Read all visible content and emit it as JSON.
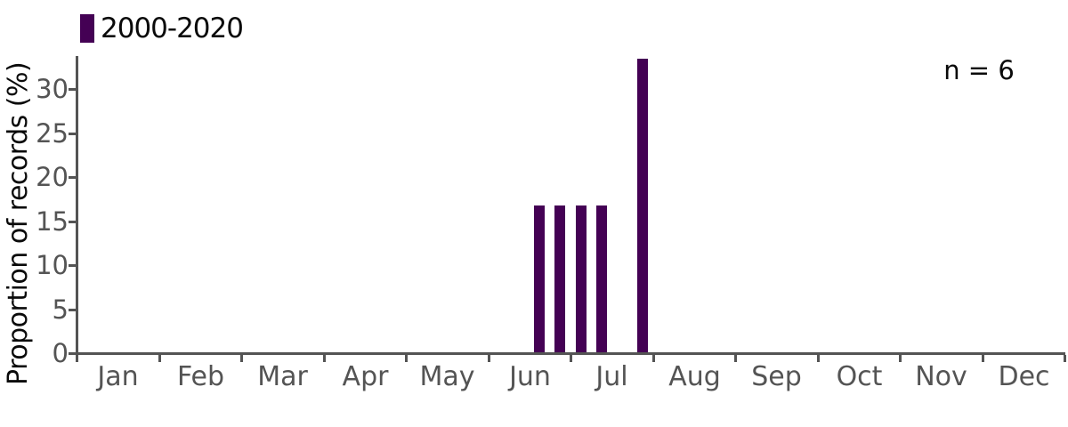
{
  "colors": {
    "bar": "#440154",
    "axis": "#545454",
    "tick_text": "#545454",
    "text": "#0a0a0a",
    "background": "#ffffff"
  },
  "legend": {
    "label": "2000-2020",
    "swatch_color": "#440154"
  },
  "annotation": "n = 6",
  "chart_data": {
    "type": "bar",
    "title": "",
    "xlabel": "",
    "ylabel": "Proportion of records (%)",
    "x_tick_labels": [
      "Jan",
      "Feb",
      "Mar",
      "Apr",
      "May",
      "Jun",
      "Jul",
      "Aug",
      "Sep",
      "Oct",
      "Nov",
      "Dec"
    ],
    "weeks_per_month": 4,
    "y_ticks": [
      0,
      5,
      10,
      15,
      20,
      25,
      30
    ],
    "ylim": [
      0,
      33.7
    ],
    "grid": false,
    "legend_position": "top-left",
    "annotation_position": "top-right",
    "sample_size": 6,
    "series": [
      {
        "name": "2000-2020",
        "color": "#440154",
        "points": [
          {
            "month": "Jun",
            "week": 3,
            "value": 16.7
          },
          {
            "month": "Jun",
            "week": 4,
            "value": 16.7
          },
          {
            "month": "Jul",
            "week": 1,
            "value": 16.7
          },
          {
            "month": "Jul",
            "week": 2,
            "value": 16.7
          },
          {
            "month": "Jul",
            "week": 4,
            "value": 33.3
          }
        ]
      }
    ]
  }
}
